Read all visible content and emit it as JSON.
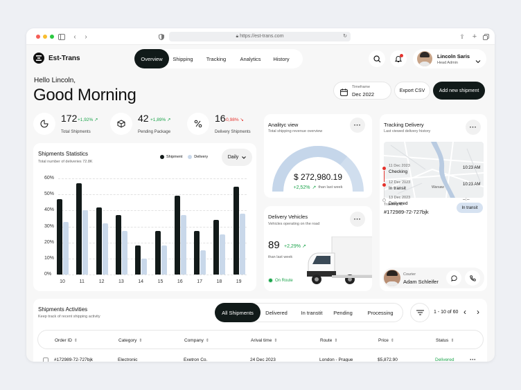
{
  "browser": {
    "url": "https://est-trans.com"
  },
  "app": {
    "brand": "Est-Trans"
  },
  "nav": {
    "tabs": [
      "Overview",
      "Shipping",
      "Tracking",
      "Analytics",
      "History"
    ],
    "active": 0
  },
  "user": {
    "name": "Lincoln Saris",
    "role": "Head Admin"
  },
  "greeting": {
    "hello": "Hello Lincoln,",
    "main": "Good Morning"
  },
  "actions": {
    "timeframe_label": "Timeframe",
    "timeframe_value": "Dec 2022",
    "export": "Export CSV",
    "new_shipment": "Add new shipment"
  },
  "stats": [
    {
      "value": "172",
      "change": "+1,92%",
      "label": "Total Shipments",
      "trend": "up"
    },
    {
      "value": "42",
      "change": "+1,89%",
      "label": "Pending Package",
      "trend": "up"
    },
    {
      "value": "16",
      "change": "-0,98%",
      "label": "Delivery Shipments",
      "trend": "down"
    }
  ],
  "shipments_stats": {
    "title": "Shipments Statistics",
    "subtitle": "Total number of deliveries 72.8K",
    "legend": [
      "Shipment",
      "Delivery"
    ],
    "period": "Daily"
  },
  "chart_data": {
    "type": "bar",
    "categories": [
      "10",
      "11",
      "12",
      "13",
      "14",
      "15",
      "16",
      "17",
      "18",
      "19"
    ],
    "series": [
      {
        "name": "Shipment",
        "values": [
          47,
          57,
          42,
          37,
          18,
          27,
          49,
          27,
          34,
          55
        ],
        "color": "#121a19"
      },
      {
        "name": "Delivery",
        "values": [
          33,
          40,
          32,
          27,
          10,
          18,
          37,
          15,
          25,
          38
        ],
        "color": "#c9d8ea"
      }
    ],
    "ylim": [
      0,
      60
    ],
    "yticks": [
      "0%",
      "10%",
      "20%",
      "30%",
      "40%",
      "50%",
      "60%"
    ],
    "legend": "top-right",
    "grid": true
  },
  "analytics": {
    "title": "Analityc view",
    "subtitle": "Total shipping revenue overview",
    "value": "$ 272,980.19",
    "change": "+2,52%",
    "change_note": "than last week",
    "gauge_fraction": 0.72
  },
  "vehicles": {
    "title": "Delivery Vehicles",
    "subtitle": "Vehicles operating on the road",
    "value": "89",
    "change": "+2,29%",
    "note": "than last week",
    "status": "On Route"
  },
  "tracking": {
    "title": "Tracking Delivery",
    "subtitle": "Last viewed delivery history",
    "map_label": "Warsaw",
    "id_label": "Tracking ID",
    "id": "#172989-72-727bjk",
    "status": "In transit",
    "steps": [
      {
        "date": "11 Dec 2023",
        "status": "Checking",
        "time": "10:23 AM"
      },
      {
        "date": "12 Dec 2023",
        "status": "In transit",
        "time": "10:23 AM"
      },
      {
        "date": "13 Dec 2023",
        "status": "Delivered",
        "time": "--:--"
      }
    ],
    "courier_label": "Courier",
    "courier_name": "Adam Schleifer"
  },
  "activities": {
    "title": "Shipments Activities",
    "subtitle": "Keep track of recent shipping activity",
    "filters": [
      "All Shipments",
      "Delivered",
      "In transtit",
      "Pending",
      "Processing"
    ],
    "active_filter": 0,
    "pagination": "1 - 10 of 60",
    "columns": [
      "Order ID",
      "Category",
      "Company",
      "Arival time",
      "Route",
      "Price",
      "Status"
    ],
    "rows": [
      [
        "#172989-72-727bjk",
        "Electronic",
        "Exetron Co.",
        "24 Dec 2023",
        "London - Prague",
        "$5,872.90",
        "Delivered"
      ]
    ]
  }
}
